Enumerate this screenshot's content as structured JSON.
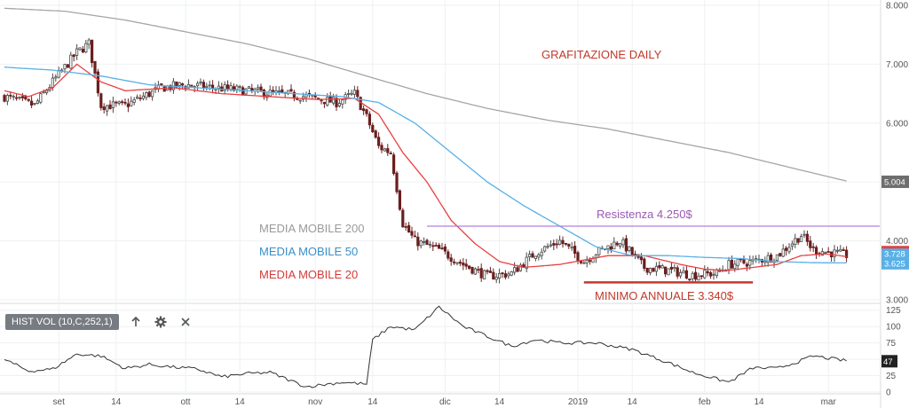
{
  "colors": {
    "grid": "#eef0f3",
    "axis_text": "#555555",
    "bull": "#4a4a4a",
    "bear": "#6b1f1f",
    "ma20": "#e84040",
    "ma50": "#58b0e6",
    "ma200": "#a5a5a5",
    "resistance": "#b47fd6",
    "minimum": "#c0392b",
    "volume_line": "#333333",
    "price_tag_red": "#e84040",
    "price_tag_blue": "#58b0e6",
    "price_tag_gray": "#a5a5a5"
  },
  "annotations": {
    "title": "GRAFITAZIONE DAILY",
    "ma200_label": "MEDIA MOBILE 200",
    "ma50_label": "MEDIA MOBILE 50",
    "ma20_label": "MEDIA MOBILE 20",
    "resistance_label": "Resistenza 4.250$",
    "minimum_label": "MINIMO ANNUALE 3.340$"
  },
  "indicator": {
    "label": "HIST VOL (10,C,252,1)",
    "icons": [
      "arrow-up-icon",
      "gear-icon",
      "close-icon"
    ]
  },
  "price_tags": {
    "ma20": "3.728",
    "ma50": "3.625",
    "ma200": "5.004",
    "vol": "47"
  },
  "chart_data": [
    {
      "type": "candlestick",
      "y_axis_position": "right",
      "ylim": [
        3.0,
        8.0
      ],
      "yticks": [
        "3.000",
        "4.000",
        "5.000",
        "6.000",
        "7.000",
        "8.000"
      ],
      "x_tick_labels": [
        "set",
        "14",
        "ott",
        "14",
        "nov",
        "14",
        "dic",
        "14",
        "2019",
        "14",
        "feb",
        "14",
        "mar"
      ],
      "grid": true,
      "approx_price_path": [
        [
          0,
          6.45
        ],
        [
          10,
          6.3
        ],
        [
          16,
          6.7
        ],
        [
          24,
          7.2
        ],
        [
          28,
          7.35
        ],
        [
          32,
          6.3
        ],
        [
          40,
          6.3
        ],
        [
          52,
          6.6
        ],
        [
          60,
          6.65
        ],
        [
          70,
          6.6
        ],
        [
          90,
          6.5
        ],
        [
          100,
          6.45
        ],
        [
          110,
          6.35
        ],
        [
          116,
          6.5
        ],
        [
          120,
          6.1
        ],
        [
          124,
          5.6
        ],
        [
          128,
          5.5
        ],
        [
          132,
          4.3
        ],
        [
          136,
          4.0
        ],
        [
          144,
          3.85
        ],
        [
          152,
          3.6
        ],
        [
          160,
          3.4
        ],
        [
          168,
          3.45
        ],
        [
          176,
          3.8
        ],
        [
          184,
          4.0
        ],
        [
          192,
          3.65
        ],
        [
          196,
          3.8
        ],
        [
          204,
          4.0
        ],
        [
          212,
          3.55
        ],
        [
          220,
          3.5
        ],
        [
          228,
          3.42
        ],
        [
          236,
          3.45
        ],
        [
          240,
          3.6
        ],
        [
          248,
          3.65
        ],
        [
          256,
          3.75
        ],
        [
          264,
          4.1
        ],
        [
          268,
          3.85
        ],
        [
          280,
          3.75
        ]
      ],
      "series": [
        {
          "name": "MEDIA MOBILE 20",
          "color": "#e84040",
          "points": [
            [
              0,
              6.55
            ],
            [
              8,
              6.45
            ],
            [
              16,
              6.6
            ],
            [
              24,
              7.0
            ],
            [
              32,
              6.7
            ],
            [
              40,
              6.55
            ],
            [
              56,
              6.6
            ],
            [
              72,
              6.5
            ],
            [
              88,
              6.45
            ],
            [
              104,
              6.4
            ],
            [
              116,
              6.42
            ],
            [
              124,
              6.15
            ],
            [
              132,
              5.5
            ],
            [
              140,
              5.0
            ],
            [
              148,
              4.35
            ],
            [
              156,
              3.95
            ],
            [
              164,
              3.65
            ],
            [
              172,
              3.55
            ],
            [
              184,
              3.6
            ],
            [
              200,
              3.75
            ],
            [
              212,
              3.75
            ],
            [
              224,
              3.6
            ],
            [
              232,
              3.52
            ],
            [
              240,
              3.5
            ],
            [
              248,
              3.55
            ],
            [
              256,
              3.6
            ],
            [
              264,
              3.75
            ],
            [
              272,
              3.78
            ],
            [
              280,
              3.728
            ]
          ]
        },
        {
          "name": "MEDIA MOBILE 50",
          "color": "#58b0e6",
          "points": [
            [
              0,
              6.95
            ],
            [
              16,
              6.9
            ],
            [
              32,
              6.8
            ],
            [
              48,
              6.65
            ],
            [
              64,
              6.6
            ],
            [
              80,
              6.55
            ],
            [
              96,
              6.5
            ],
            [
              112,
              6.45
            ],
            [
              124,
              6.35
            ],
            [
              136,
              6.0
            ],
            [
              148,
              5.5
            ],
            [
              160,
              5.0
            ],
            [
              172,
              4.6
            ],
            [
              184,
              4.25
            ],
            [
              196,
              3.9
            ],
            [
              208,
              3.75
            ],
            [
              220,
              3.75
            ],
            [
              232,
              3.72
            ],
            [
              244,
              3.7
            ],
            [
              256,
              3.65
            ],
            [
              268,
              3.63
            ],
            [
              280,
              3.625
            ]
          ]
        },
        {
          "name": "MEDIA MOBILE 200",
          "color": "#a5a5a5",
          "points": [
            [
              0,
              7.95
            ],
            [
              20,
              7.9
            ],
            [
              40,
              7.75
            ],
            [
              60,
              7.55
            ],
            [
              80,
              7.35
            ],
            [
              100,
              7.1
            ],
            [
              120,
              6.8
            ],
            [
              140,
              6.5
            ],
            [
              160,
              6.25
            ],
            [
              180,
              6.05
            ],
            [
              200,
              5.9
            ],
            [
              220,
              5.7
            ],
            [
              240,
              5.5
            ],
            [
              260,
              5.25
            ],
            [
              280,
              5.004
            ]
          ]
        }
      ],
      "horizontal_levels": [
        {
          "name": "Resistenza",
          "value": 4.25,
          "x_from": 140,
          "x_to": 290
        },
        {
          "name": "MINIMO ANNUALE",
          "value": 3.34,
          "x_from": 192,
          "x_to": 248
        }
      ]
    },
    {
      "type": "line",
      "name": "HIST VOL (10,C,252,1)",
      "y_axis_position": "right",
      "ylim": [
        0,
        130
      ],
      "yticks": [
        "0",
        "25",
        "50",
        "75",
        "100",
        "125"
      ],
      "grid": true,
      "points": [
        [
          0,
          50
        ],
        [
          8,
          32
        ],
        [
          16,
          35
        ],
        [
          24,
          58
        ],
        [
          32,
          55
        ],
        [
          40,
          36
        ],
        [
          48,
          42
        ],
        [
          56,
          38
        ],
        [
          64,
          35
        ],
        [
          72,
          23
        ],
        [
          80,
          28
        ],
        [
          88,
          30
        ],
        [
          100,
          8
        ],
        [
          112,
          15
        ],
        [
          120,
          12
        ],
        [
          122,
          80
        ],
        [
          128,
          100
        ],
        [
          136,
          95
        ],
        [
          144,
          130
        ],
        [
          152,
          100
        ],
        [
          160,
          85
        ],
        [
          168,
          70
        ],
        [
          176,
          80
        ],
        [
          184,
          75
        ],
        [
          196,
          75
        ],
        [
          208,
          65
        ],
        [
          220,
          45
        ],
        [
          228,
          30
        ],
        [
          236,
          20
        ],
        [
          240,
          15
        ],
        [
          248,
          37
        ],
        [
          256,
          36
        ],
        [
          264,
          48
        ],
        [
          268,
          55
        ],
        [
          280,
          47
        ]
      ]
    }
  ]
}
